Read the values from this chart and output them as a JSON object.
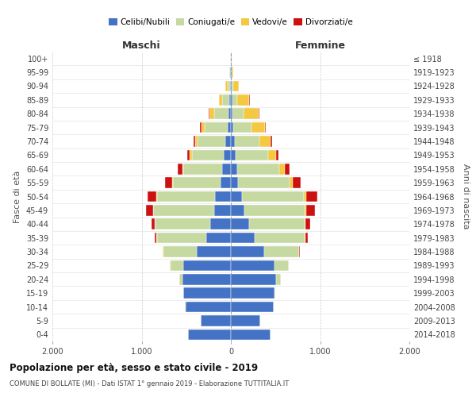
{
  "age_groups": [
    "0-4",
    "5-9",
    "10-14",
    "15-19",
    "20-24",
    "25-29",
    "30-34",
    "35-39",
    "40-44",
    "45-49",
    "50-54",
    "55-59",
    "60-64",
    "65-69",
    "70-74",
    "75-79",
    "80-84",
    "85-89",
    "90-94",
    "95-99",
    "100+"
  ],
  "birth_years": [
    "2014-2018",
    "2009-2013",
    "2004-2008",
    "1999-2003",
    "1994-1998",
    "1989-1993",
    "1984-1988",
    "1979-1983",
    "1974-1978",
    "1969-1973",
    "1964-1968",
    "1959-1963",
    "1954-1958",
    "1949-1953",
    "1944-1948",
    "1939-1943",
    "1934-1938",
    "1929-1933",
    "1924-1928",
    "1919-1923",
    "≤ 1918"
  ],
  "colors": {
    "celibi": "#4472C4",
    "coniugati": "#C5D9A0",
    "vedovi": "#F5C842",
    "divorziati": "#CC1111"
  },
  "male": {
    "celibi": [
      480,
      340,
      510,
      530,
      540,
      530,
      380,
      280,
      230,
      190,
      180,
      120,
      100,
      80,
      60,
      40,
      30,
      20,
      10,
      5,
      2
    ],
    "coniugati": [
      1,
      1,
      2,
      5,
      40,
      150,
      380,
      550,
      620,
      680,
      650,
      530,
      430,
      360,
      310,
      250,
      160,
      80,
      30,
      10,
      3
    ],
    "vedovi": [
      0,
      0,
      0,
      0,
      1,
      1,
      1,
      2,
      3,
      5,
      5,
      10,
      15,
      20,
      30,
      40,
      50,
      30,
      20,
      5,
      2
    ],
    "divorziati": [
      0,
      0,
      0,
      0,
      1,
      3,
      5,
      20,
      40,
      80,
      100,
      80,
      50,
      30,
      20,
      15,
      10,
      5,
      0,
      0,
      0
    ]
  },
  "female": {
    "nubili": [
      440,
      330,
      480,
      490,
      510,
      490,
      370,
      270,
      200,
      150,
      120,
      80,
      70,
      55,
      40,
      30,
      20,
      15,
      10,
      5,
      2
    ],
    "coniugati": [
      1,
      1,
      2,
      5,
      50,
      155,
      390,
      560,
      630,
      680,
      700,
      580,
      470,
      360,
      280,
      200,
      120,
      60,
      20,
      5,
      2
    ],
    "vedovi": [
      0,
      0,
      0,
      0,
      1,
      1,
      2,
      4,
      8,
      15,
      20,
      35,
      60,
      90,
      120,
      150,
      170,
      130,
      60,
      15,
      3
    ],
    "divorziati": [
      0,
      0,
      0,
      0,
      2,
      3,
      8,
      25,
      50,
      100,
      130,
      90,
      60,
      30,
      20,
      15,
      8,
      5,
      2,
      0,
      0
    ]
  },
  "xlim": 2000,
  "title": "Popolazione per età, sesso e stato civile - 2019",
  "subtitle": "COMUNE DI BOLLATE (MI) - Dati ISTAT 1° gennaio 2019 - Elaborazione TUTTITALIA.IT",
  "ylabel_left": "Fasce di età",
  "ylabel_right": "Anni di nascita",
  "xlabel_left": "Maschi",
  "xlabel_right": "Femmine",
  "xticklabels": [
    "2.000",
    "1.000",
    "0",
    "1.000",
    "2.000"
  ]
}
